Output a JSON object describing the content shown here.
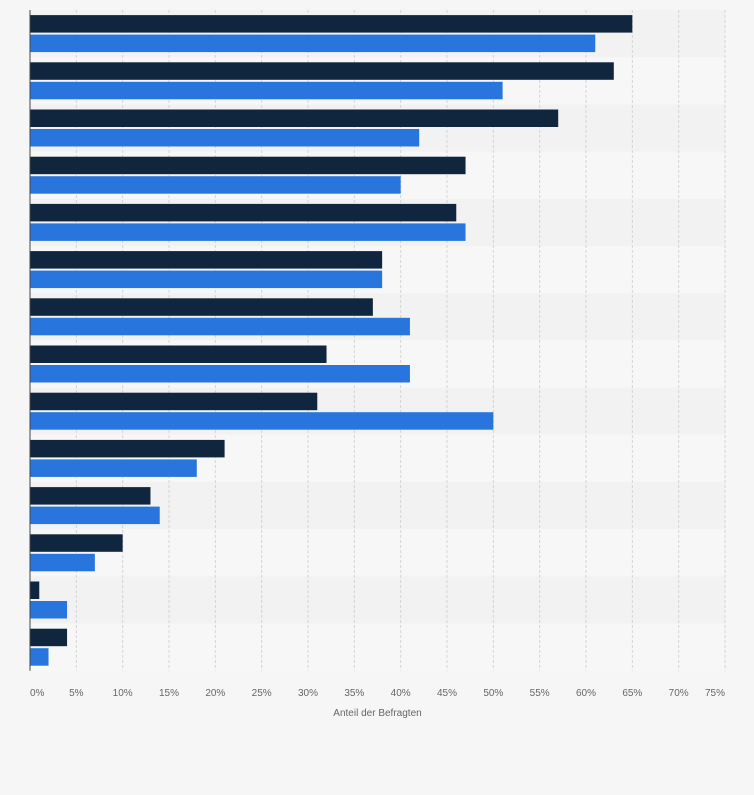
{
  "chart_data": {
    "type": "bar",
    "orientation": "horizontal",
    "categories": [
      "",
      "",
      "",
      "",
      "",
      "",
      "",
      "",
      "",
      "",
      "",
      "",
      "",
      ""
    ],
    "series": [
      {
        "values": [
          65,
          63,
          57,
          47,
          46,
          38,
          37,
          32,
          31,
          21,
          13,
          10,
          1,
          4
        ]
      },
      {
        "values": [
          61,
          51,
          42,
          40,
          47,
          38,
          41,
          41,
          50,
          18,
          14,
          7,
          4,
          2
        ]
      }
    ],
    "xlabel": "Anteil der Befragten",
    "ylabel": "",
    "xlim": [
      0,
      75
    ],
    "xticks": [
      "0%",
      "5%",
      "10%",
      "15%",
      "20%",
      "25%",
      "30%",
      "35%",
      "40%",
      "45%",
      "50%",
      "55%",
      "60%",
      "65%",
      "70%",
      "75%"
    ],
    "grid": true,
    "legend": "none",
    "colors": {
      "series_0": "#10263e",
      "series_1": "#2876dd",
      "band_a": "#f2f2f2",
      "band_b": "#f7f7f7",
      "grid": "#d4d4d4",
      "axis": "#444444",
      "text": "#666666"
    }
  }
}
